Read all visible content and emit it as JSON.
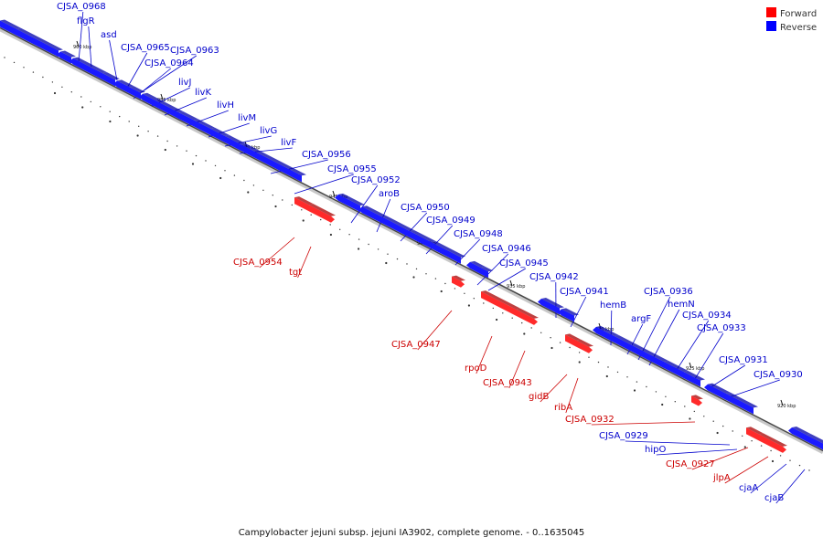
{
  "title": "Campylobacter jejuni subsp. jejuni IA3902, complete genome. - 0..1635045",
  "legend": {
    "forward": {
      "label": "Forward",
      "color": "#ff0000"
    },
    "reverse": {
      "label": "Reverse",
      "color": "#0000ff"
    }
  },
  "ticks": [
    "960 kbp",
    "955 kbp",
    "950 kbp",
    "945 kbp",
    "940 kbp",
    "935 kbp",
    "930 kbp",
    "925 kbp",
    "920 kbp"
  ],
  "genes": [
    {
      "name": "CJSA_0968",
      "strand": "reverse"
    },
    {
      "name": "flgR",
      "strand": "reverse"
    },
    {
      "name": "asd",
      "strand": "reverse"
    },
    {
      "name": "CJSA_0965",
      "strand": "reverse"
    },
    {
      "name": "CJSA_0963",
      "strand": "reverse"
    },
    {
      "name": "CJSA_0964",
      "strand": "reverse"
    },
    {
      "name": "livJ",
      "strand": "reverse"
    },
    {
      "name": "livK",
      "strand": "reverse"
    },
    {
      "name": "livH",
      "strand": "reverse"
    },
    {
      "name": "livM",
      "strand": "reverse"
    },
    {
      "name": "livG",
      "strand": "reverse"
    },
    {
      "name": "livF",
      "strand": "reverse"
    },
    {
      "name": "CJSA_0956",
      "strand": "reverse"
    },
    {
      "name": "CJSA_0955",
      "strand": "reverse"
    },
    {
      "name": "CJSA_0952",
      "strand": "reverse"
    },
    {
      "name": "aroB",
      "strand": "reverse"
    },
    {
      "name": "CJSA_0950",
      "strand": "reverse"
    },
    {
      "name": "CJSA_0949",
      "strand": "reverse"
    },
    {
      "name": "CJSA_0948",
      "strand": "reverse"
    },
    {
      "name": "CJSA_0946",
      "strand": "reverse"
    },
    {
      "name": "CJSA_0945",
      "strand": "reverse"
    },
    {
      "name": "CJSA_0942",
      "strand": "reverse"
    },
    {
      "name": "CJSA_0941",
      "strand": "reverse"
    },
    {
      "name": "hemB",
      "strand": "reverse"
    },
    {
      "name": "argF",
      "strand": "reverse"
    },
    {
      "name": "CJSA_0936",
      "strand": "reverse"
    },
    {
      "name": "hemN",
      "strand": "reverse"
    },
    {
      "name": "CJSA_0934",
      "strand": "reverse"
    },
    {
      "name": "CJSA_0933",
      "strand": "reverse"
    },
    {
      "name": "CJSA_0931",
      "strand": "reverse"
    },
    {
      "name": "CJSA_0930",
      "strand": "reverse"
    },
    {
      "name": "CJSA_0929",
      "strand": "reverse"
    },
    {
      "name": "hipO",
      "strand": "reverse"
    },
    {
      "name": "cjaA",
      "strand": "reverse"
    },
    {
      "name": "cjaB",
      "strand": "reverse"
    },
    {
      "name": "CJSA_0954",
      "strand": "forward"
    },
    {
      "name": "tgt",
      "strand": "forward"
    },
    {
      "name": "CJSA_0947",
      "strand": "forward"
    },
    {
      "name": "rpoD",
      "strand": "forward"
    },
    {
      "name": "CJSA_0943",
      "strand": "forward"
    },
    {
      "name": "gidB",
      "strand": "forward"
    },
    {
      "name": "ribA",
      "strand": "forward"
    },
    {
      "name": "CJSA_0932",
      "strand": "forward"
    },
    {
      "name": "CJSA_0927",
      "strand": "forward"
    },
    {
      "name": "jlpA",
      "strand": "forward"
    }
  ]
}
